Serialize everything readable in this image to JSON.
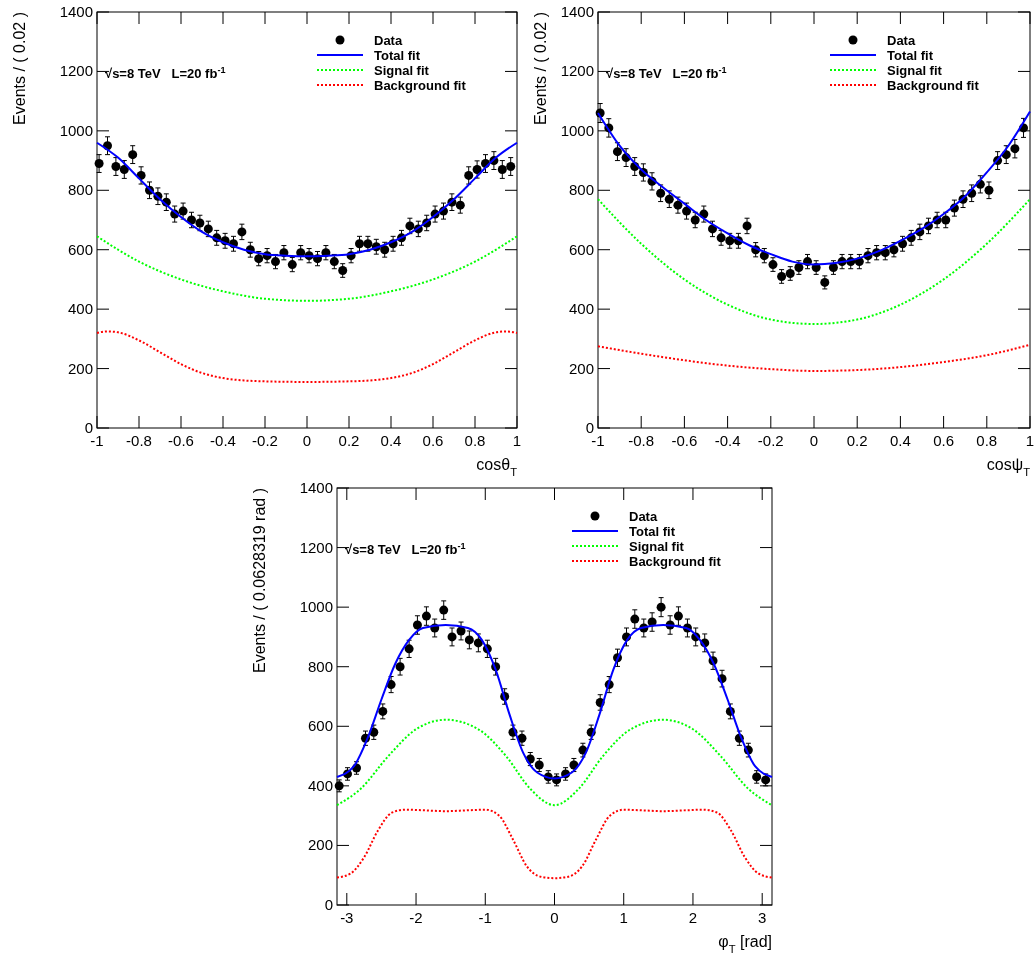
{
  "chart_data": [
    {
      "type": "scatter",
      "xlabel": "cosθ$_{T}$",
      "ylabel": "Events / ( 0.02 )",
      "annotations": [
        "√s=8 TeV   L=20 fb$^{-1}$"
      ],
      "legend": "top right",
      "grid": false,
      "xlim": [
        -1,
        1
      ],
      "xticks": [
        -1,
        -0.8,
        -0.6,
        -0.4,
        -0.2,
        0,
        0.2,
        0.4,
        0.6,
        0.8,
        1
      ],
      "ylim": [
        0,
        1400
      ],
      "yticks": [
        0,
        200,
        400,
        600,
        800,
        1000,
        1200,
        1400
      ],
      "series": [
        {
          "name": "Data",
          "type": "scatter",
          "marker": "circle",
          "color": "#000000",
          "x": [
            -0.99,
            -0.95,
            -0.91,
            -0.87,
            -0.83,
            -0.79,
            -0.75,
            -0.71,
            -0.67,
            -0.63,
            -0.59,
            -0.55,
            -0.51,
            -0.47,
            -0.43,
            -0.39,
            -0.35,
            -0.31,
            -0.27,
            -0.23,
            -0.19,
            -0.15,
            -0.11,
            -0.07,
            -0.03,
            0.01,
            0.05,
            0.09,
            0.13,
            0.17,
            0.21,
            0.25,
            0.29,
            0.33,
            0.37,
            0.41,
            0.45,
            0.49,
            0.53,
            0.57,
            0.61,
            0.65,
            0.69,
            0.73,
            0.77,
            0.81,
            0.85,
            0.89,
            0.93,
            0.97
          ],
          "values": [
            890,
            950,
            880,
            870,
            920,
            850,
            800,
            780,
            760,
            720,
            730,
            700,
            690,
            670,
            640,
            630,
            620,
            660,
            600,
            570,
            580,
            560,
            590,
            550,
            590,
            580,
            570,
            590,
            560,
            530,
            580,
            620,
            620,
            610,
            600,
            620,
            640,
            680,
            670,
            690,
            720,
            730,
            760,
            750,
            850,
            870,
            890,
            900,
            870,
            880
          ],
          "errors": [
            30,
            30,
            30,
            30,
            30,
            29,
            28,
            28,
            28,
            27,
            27,
            26,
            26,
            26,
            25,
            25,
            25,
            26,
            25,
            24,
            24,
            24,
            24,
            24,
            24,
            24,
            24,
            24,
            24,
            23,
            24,
            25,
            25,
            25,
            25,
            25,
            25,
            26,
            26,
            26,
            27,
            27,
            28,
            27,
            29,
            29,
            30,
            30,
            30,
            30
          ]
        },
        {
          "name": "Total fit",
          "type": "line",
          "line_style": "solid",
          "color": "#0000ff",
          "x": [
            -1,
            -0.9,
            -0.8,
            -0.7,
            -0.6,
            -0.5,
            -0.4,
            -0.3,
            -0.2,
            -0.1,
            0,
            0.1,
            0.2,
            0.3,
            0.4,
            0.5,
            0.6,
            0.7,
            0.8,
            0.9,
            1
          ],
          "values": [
            960,
            910,
            840,
            770,
            710,
            660,
            625,
            600,
            585,
            580,
            578,
            580,
            585,
            600,
            625,
            660,
            710,
            770,
            840,
            910,
            960
          ]
        },
        {
          "name": "Signal fit",
          "type": "line",
          "line_style": "dotted",
          "color": "#00ff00",
          "x": [
            -1,
            -0.8,
            -0.6,
            -0.4,
            -0.2,
            0,
            0.2,
            0.4,
            0.6,
            0.8,
            1
          ],
          "values": [
            645,
            560,
            500,
            460,
            435,
            428,
            435,
            460,
            500,
            560,
            645
          ]
        },
        {
          "name": "Background fit",
          "type": "line",
          "line_style": "dotted",
          "color": "#ff0000",
          "x": [
            -1,
            -0.95,
            -0.9,
            -0.8,
            -0.7,
            -0.6,
            -0.5,
            -0.4,
            -0.3,
            -0.2,
            0,
            0.2,
            0.3,
            0.4,
            0.5,
            0.6,
            0.7,
            0.8,
            0.9,
            0.95,
            1
          ],
          "values": [
            320,
            325,
            322,
            295,
            255,
            215,
            185,
            168,
            160,
            157,
            155,
            157,
            160,
            168,
            185,
            215,
            255,
            295,
            322,
            325,
            320
          ]
        }
      ]
    },
    {
      "type": "scatter",
      "xlabel": "cosψ$_{T}$",
      "ylabel": "Events / ( 0.02 )",
      "annotations": [
        "√s=8 TeV   L=20 fb$^{-1}$"
      ],
      "legend": "top right",
      "grid": false,
      "xlim": [
        -1,
        1
      ],
      "xticks": [
        -1,
        -0.8,
        -0.6,
        -0.4,
        -0.2,
        0,
        0.2,
        0.4,
        0.6,
        0.8,
        1
      ],
      "ylim": [
        0,
        1400
      ],
      "yticks": [
        0,
        200,
        400,
        600,
        800,
        1000,
        1200,
        1400
      ],
      "series": [
        {
          "name": "Data",
          "type": "scatter",
          "marker": "circle",
          "color": "#000000",
          "x": [
            -0.99,
            -0.95,
            -0.91,
            -0.87,
            -0.83,
            -0.79,
            -0.75,
            -0.71,
            -0.67,
            -0.63,
            -0.59,
            -0.55,
            -0.51,
            -0.47,
            -0.43,
            -0.39,
            -0.35,
            -0.31,
            -0.27,
            -0.23,
            -0.19,
            -0.15,
            -0.11,
            -0.07,
            -0.03,
            0.01,
            0.05,
            0.09,
            0.13,
            0.17,
            0.21,
            0.25,
            0.29,
            0.33,
            0.37,
            0.41,
            0.45,
            0.49,
            0.53,
            0.57,
            0.61,
            0.65,
            0.69,
            0.73,
            0.77,
            0.81,
            0.85,
            0.89,
            0.93,
            0.97
          ],
          "values": [
            1060,
            1010,
            930,
            910,
            880,
            860,
            830,
            790,
            770,
            750,
            730,
            700,
            720,
            670,
            640,
            630,
            630,
            680,
            600,
            580,
            550,
            510,
            520,
            540,
            560,
            540,
            490,
            540,
            560,
            560,
            560,
            580,
            590,
            590,
            600,
            620,
            640,
            660,
            680,
            700,
            700,
            740,
            770,
            790,
            820,
            800,
            900,
            920,
            940,
            1010
          ],
          "errors": [
            32,
            31,
            30,
            30,
            30,
            29,
            29,
            28,
            28,
            27,
            27,
            26,
            27,
            26,
            25,
            25,
            25,
            26,
            24,
            24,
            23,
            23,
            23,
            23,
            24,
            23,
            22,
            23,
            24,
            24,
            24,
            24,
            24,
            24,
            24,
            25,
            25,
            26,
            26,
            26,
            26,
            27,
            28,
            28,
            29,
            28,
            30,
            30,
            31,
            32
          ]
        },
        {
          "name": "Total fit",
          "type": "line",
          "line_style": "solid",
          "color": "#0000ff",
          "x": [
            -1,
            -0.9,
            -0.8,
            -0.7,
            -0.6,
            -0.5,
            -0.4,
            -0.3,
            -0.2,
            -0.1,
            0,
            0.1,
            0.2,
            0.3,
            0.4,
            0.5,
            0.6,
            0.7,
            0.8,
            0.9,
            1
          ],
          "values": [
            1060,
            950,
            870,
            810,
            755,
            700,
            655,
            615,
            585,
            560,
            550,
            555,
            570,
            595,
            630,
            670,
            720,
            780,
            860,
            950,
            1065
          ]
        },
        {
          "name": "Signal fit",
          "type": "line",
          "line_style": "dotted",
          "color": "#00ff00",
          "x": [
            -1,
            -0.8,
            -0.6,
            -0.4,
            -0.2,
            0,
            0.2,
            0.4,
            0.6,
            0.8,
            1
          ],
          "values": [
            770,
            620,
            500,
            415,
            365,
            350,
            365,
            415,
            500,
            620,
            770
          ]
        },
        {
          "name": "Background fit",
          "type": "line",
          "line_style": "dotted",
          "color": "#ff0000",
          "x": [
            -1,
            -0.8,
            -0.6,
            -0.4,
            -0.2,
            0,
            0.2,
            0.4,
            0.6,
            0.8,
            1
          ],
          "values": [
            275,
            250,
            228,
            210,
            198,
            192,
            195,
            205,
            222,
            245,
            280
          ]
        }
      ]
    },
    {
      "type": "scatter",
      "xlabel": "φ$_{T}$ [rad]",
      "ylabel": "Events / ( 0.0628319 rad )",
      "annotations": [
        "√s=8 TeV   L=20 fb$^{-1}$"
      ],
      "legend": "top right",
      "grid": false,
      "xlim": [
        -3.1416,
        3.1416
      ],
      "xticks": [
        -3,
        -2,
        -1,
        0,
        1,
        2,
        3
      ],
      "ylim": [
        0,
        1400
      ],
      "yticks": [
        0,
        200,
        400,
        600,
        800,
        1000,
        1200,
        1400
      ],
      "series": [
        {
          "name": "Data",
          "type": "scatter",
          "marker": "circle",
          "color": "#000000",
          "x": [
            -3.11,
            -2.99,
            -2.86,
            -2.73,
            -2.61,
            -2.48,
            -2.36,
            -2.23,
            -2.1,
            -1.98,
            -1.85,
            -1.73,
            -1.6,
            -1.48,
            -1.35,
            -1.23,
            -1.1,
            -0.97,
            -0.85,
            -0.72,
            -0.6,
            -0.47,
            -0.35,
            -0.22,
            -0.09,
            0.03,
            0.16,
            0.28,
            0.41,
            0.53,
            0.66,
            0.79,
            0.91,
            1.04,
            1.16,
            1.29,
            1.41,
            1.54,
            1.67,
            1.79,
            1.92,
            2.04,
            2.17,
            2.29,
            2.42,
            2.54,
            2.67,
            2.8,
            2.92,
            3.05
          ],
          "values": [
            400,
            440,
            460,
            560,
            580,
            650,
            740,
            800,
            860,
            940,
            970,
            930,
            990,
            900,
            920,
            890,
            880,
            860,
            800,
            700,
            580,
            560,
            490,
            470,
            430,
            420,
            440,
            470,
            520,
            580,
            680,
            740,
            830,
            900,
            960,
            930,
            950,
            1000,
            940,
            970,
            930,
            900,
            880,
            820,
            760,
            650,
            560,
            520,
            430,
            420
          ],
          "errors": [
            20,
            21,
            21,
            24,
            24,
            25,
            27,
            28,
            29,
            31,
            31,
            30,
            31,
            30,
            30,
            30,
            30,
            29,
            28,
            26,
            24,
            24,
            22,
            22,
            21,
            20,
            21,
            22,
            23,
            24,
            26,
            27,
            29,
            30,
            31,
            30,
            31,
            32,
            31,
            31,
            30,
            30,
            30,
            29,
            28,
            25,
            24,
            23,
            21,
            20
          ]
        },
        {
          "name": "Total fit",
          "type": "line",
          "line_style": "solid",
          "color": "#0000ff",
          "x": [
            -3.1416,
            -2.9,
            -2.7,
            -2.5,
            -2.3,
            -2.1,
            -1.9,
            -1.57,
            -1.25,
            -1.05,
            -0.85,
            -0.65,
            -0.45,
            -0.25,
            0,
            0.25,
            0.45,
            0.65,
            0.85,
            1.05,
            1.25,
            1.57,
            1.9,
            2.1,
            2.3,
            2.5,
            2.7,
            2.9,
            3.1416
          ],
          "values": [
            430,
            465,
            560,
            690,
            810,
            890,
            930,
            940,
            930,
            890,
            790,
            640,
            510,
            445,
            425,
            445,
            510,
            640,
            790,
            890,
            930,
            940,
            930,
            890,
            810,
            690,
            560,
            465,
            430
          ]
        },
        {
          "name": "Signal fit",
          "type": "line",
          "line_style": "dotted",
          "color": "#00ff00",
          "x": [
            -3.1416,
            -2.8,
            -2.4,
            -2,
            -1.57,
            -1.1,
            -0.7,
            -0.35,
            0,
            0.35,
            0.7,
            1.1,
            1.57,
            2,
            2.4,
            2.8,
            3.1416
          ],
          "values": [
            335,
            390,
            500,
            590,
            622,
            590,
            500,
            390,
            335,
            390,
            500,
            590,
            622,
            590,
            500,
            390,
            335
          ]
        },
        {
          "name": "Background fit",
          "type": "line",
          "line_style": "dotted",
          "color": "#ff0000",
          "x": [
            -3.1416,
            -2.95,
            -2.75,
            -2.55,
            -2.35,
            -2.15,
            -1.9,
            -1.57,
            -1.25,
            -1.0,
            -0.8,
            -0.6,
            -0.4,
            -0.2,
            0,
            0.2,
            0.4,
            0.6,
            0.8,
            1.0,
            1.25,
            1.57,
            1.9,
            2.15,
            2.35,
            2.55,
            2.75,
            2.95,
            3.1416
          ],
          "values": [
            92,
            105,
            160,
            250,
            310,
            320,
            318,
            315,
            318,
            320,
            300,
            220,
            130,
            95,
            90,
            95,
            130,
            220,
            300,
            320,
            318,
            315,
            318,
            320,
            310,
            250,
            160,
            105,
            92
          ]
        }
      ]
    }
  ]
}
